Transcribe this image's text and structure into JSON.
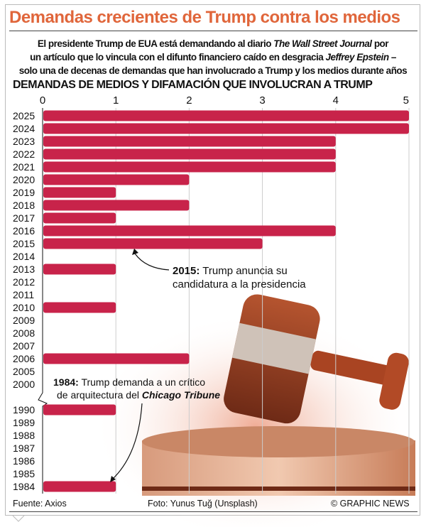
{
  "title": "Demandas crecientes de Trump contra los medios",
  "subtitle": {
    "l1a": "El presidente Trump de EUA está demandando al diario ",
    "l1b": "The Wall Street Journal",
    "l1c": " por",
    "l2a": "un artículo que lo vincula con  el difunto financiero caído en desgracia ",
    "l2b": "Jeffrey Epstein",
    "l2c": " –",
    "l3": "solo una de decenas de demandas que han involucrado a Trump y los medios durante años"
  },
  "chart_data": {
    "type": "bar",
    "orientation": "horizontal",
    "title": "DEMANDAS DE MEDIOS Y DIFAMACIÓN QUE INVOLUCRAN A TRUMP",
    "xlim": [
      0,
      5
    ],
    "xticks": [
      "0",
      "1",
      "2",
      "3",
      "4",
      "5"
    ],
    "categories": [
      "2025",
      "2024",
      "2023",
      "2022",
      "2021",
      "2020",
      "2019",
      "2018",
      "2017",
      "2016",
      "2015",
      "2014",
      "2013",
      "2012",
      "2011",
      "2010",
      "2009",
      "2008",
      "2007",
      "2006",
      "2005",
      "2000",
      "1990",
      "1989",
      "1988",
      "1987",
      "1986",
      "1985",
      "1984"
    ],
    "values": [
      5,
      5,
      4,
      4,
      4,
      2,
      1,
      2,
      1,
      4,
      3,
      0,
      1,
      0,
      0,
      1,
      0,
      0,
      0,
      2,
      0,
      0,
      1,
      0,
      0,
      0,
      0,
      0,
      1
    ],
    "axis_break_after": "2000",
    "bar_color": "#c8234a",
    "annotations": [
      {
        "bold": "2015:",
        "text": " Trump anuncia su",
        "text2": "candidatura a la presidencia",
        "target": "2015"
      },
      {
        "bold": "1984:",
        "text": " Trump demanda a un crítico",
        "text2a": "de arquitectura del ",
        "text2b": "Chicago Tribune",
        "target": "1984"
      }
    ]
  },
  "footer": {
    "source": "Fuente: Axios",
    "photo": "Foto: Yunus Tuğ (Unsplash)",
    "credit": "© GRAPHIC NEWS"
  },
  "colors": {
    "title": "#e0663b",
    "bars": "#c8234a"
  }
}
